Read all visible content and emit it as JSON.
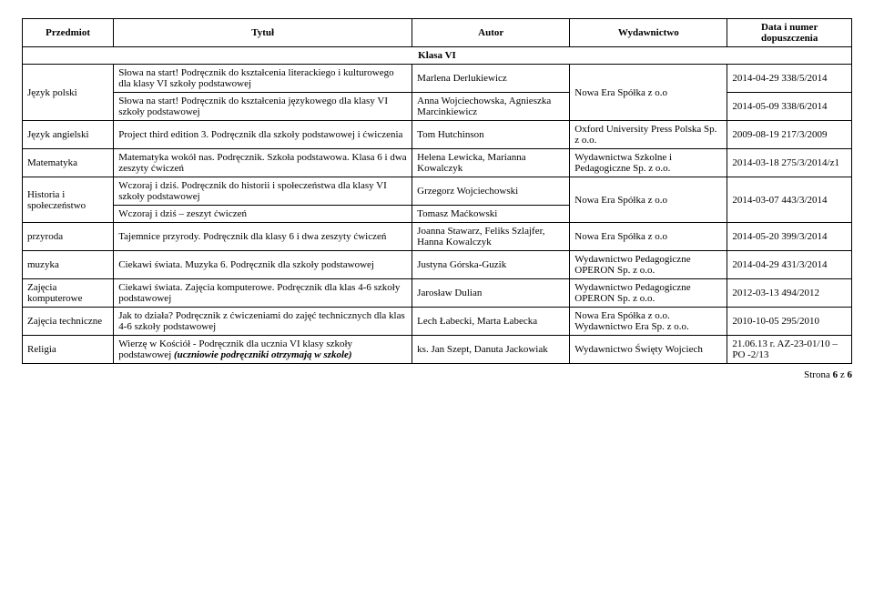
{
  "headers": {
    "subject": "Przedmiot",
    "title": "Tytuł",
    "author": "Autor",
    "publisher": "Wydawnictwo",
    "date": "Data i numer dopuszczenia"
  },
  "class_row": "Klasa VI",
  "rows": [
    {
      "subject": "Język polski",
      "subject_rowspan": 2,
      "title": "Słowa na start! Podręcznik do kształcenia literackiego i kulturowego dla klasy VI szkoły podstawowej",
      "author": "Marlena Derlukiewicz",
      "publisher": "Nowa Era Spółka z o.o",
      "publisher_rowspan": 2,
      "date": "2014-04-29 338/5/2014"
    },
    {
      "title": "Słowa na start! Podręcznik do kształcenia językowego dla klasy VI szkoły podstawowej",
      "author": "Anna Wojciechowska, Agnieszka Marcinkiewicz",
      "date": "2014-05-09 338/6/2014"
    },
    {
      "subject": "Język angielski",
      "title": "Project third edition 3. Podręcznik dla szkoły podstawowej i ćwiczenia",
      "author": "Tom Hutchinson",
      "publisher": "Oxford University Press Polska Sp. z o.o.",
      "date": "2009-08-19 217/3/2009"
    },
    {
      "subject": "Matematyka",
      "title": "Matematyka wokół nas. Podręcznik. Szkoła podstawowa. Klasa 6 i dwa zeszyty ćwiczeń",
      "author": "Helena Lewicka, Marianna Kowalczyk",
      "publisher": "Wydawnictwa Szkolne i Pedagogiczne Sp. z o.o.",
      "date": "2014-03-18 275/3/2014/z1"
    },
    {
      "subject": "Historia i społeczeństwo",
      "subject_rowspan": 2,
      "title": "Wczoraj i dziś. Podręcznik do historii i społeczeństwa dla klasy VI szkoły podstawowej",
      "author": "Grzegorz Wojciechowski",
      "publisher": "Nowa Era Spółka z o.o",
      "publisher_rowspan": 2,
      "date": "2014-03-07 443/3/2014",
      "date_rowspan": 2
    },
    {
      "title": "Wczoraj i dziś – zeszyt ćwiczeń",
      "author": "Tomasz Maćkowski"
    },
    {
      "subject": "przyroda",
      "title": "Tajemnice przyrody. Podręcznik dla klasy 6 i dwa zeszyty ćwiczeń",
      "author": "Joanna Stawarz, Feliks Szlajfer, Hanna Kowalczyk",
      "publisher": "Nowa Era Spółka z o.o",
      "date": "2014-05-20 399/3/2014"
    },
    {
      "subject": "muzyka",
      "title": "Ciekawi świata. Muzyka 6. Podręcznik dla szkoły podstawowej",
      "author": "Justyna Górska-Guzik",
      "publisher": "Wydawnictwo Pedagogiczne OPERON Sp. z o.o.",
      "date": "2014-04-29 431/3/2014"
    },
    {
      "subject": "Zajęcia komputerowe",
      "title": "Ciekawi świata. Zajęcia komputerowe. Podręcznik dla klas 4-6 szkoły podstawowej",
      "author": "Jarosław Dulian",
      "publisher": "Wydawnictwo Pedagogiczne OPERON Sp. z o.o.",
      "date": "2012-03-13 494/2012"
    },
    {
      "subject": "Zajęcia techniczne",
      "title": "Jak to działa? Podręcznik z ćwiczeniami do zajęć technicznych dla klas 4-6 szkoły podstawowej",
      "author": "Lech Łabecki, Marta Łabecka",
      "publisher": "Nowa Era Spółka z o.o. Wydawnictwo Era Sp. z o.o.",
      "date": "2010-10-05 295/2010"
    },
    {
      "subject": "Religia",
      "title_html": "Wierzę w Kościół - Podręcznik dla ucznia VI klasy szkoły podstawowej <i><b>(uczniowie podręczniki otrzymają w szkole)</b></i>",
      "author": "ks. Jan Szept, Danuta Jackowiak",
      "publisher": "Wydawnictwo Święty Wojciech",
      "date": "21.06.13 r. AZ-23-01/10 – PO -2/13"
    }
  ],
  "footer": {
    "label": "Strona ",
    "page": "6",
    "of_label": " z ",
    "total": "6"
  }
}
